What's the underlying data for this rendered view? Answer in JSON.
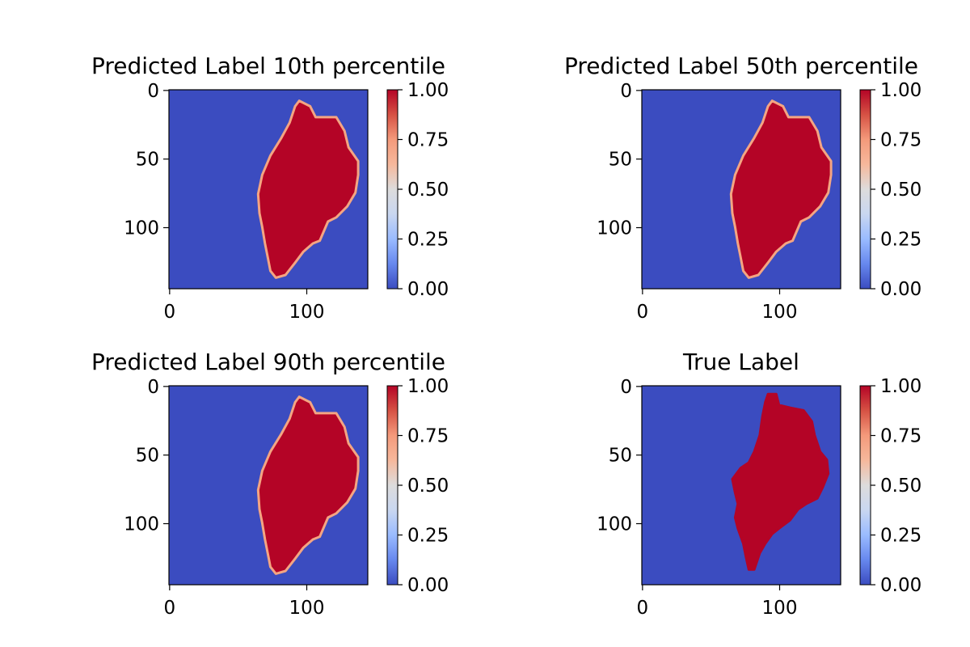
{
  "chart_data": [
    {
      "type": "heatmap",
      "title": "Predicted Label 10th percentile",
      "image_size": [
        145,
        145
      ],
      "xticks": [
        0,
        100
      ],
      "yticks": [
        0,
        50,
        100
      ],
      "colorbar": {
        "min": 0.0,
        "max": 1.0,
        "ticks": [
          "0.00",
          "0.25",
          "0.50",
          "0.75",
          "1.00"
        ],
        "colormap": "coolwarm"
      },
      "region_outline": [
        [
          95,
          8
        ],
        [
          103,
          12
        ],
        [
          107,
          20
        ],
        [
          122,
          20
        ],
        [
          128,
          30
        ],
        [
          131,
          42
        ],
        [
          138,
          52
        ],
        [
          138,
          62
        ],
        [
          136,
          75
        ],
        [
          130,
          85
        ],
        [
          122,
          93
        ],
        [
          116,
          96
        ],
        [
          110,
          110
        ],
        [
          105,
          112
        ],
        [
          98,
          118
        ],
        [
          92,
          126
        ],
        [
          85,
          135
        ],
        [
          78,
          137
        ],
        [
          74,
          132
        ],
        [
          72,
          122
        ],
        [
          70,
          112
        ],
        [
          68,
          100
        ],
        [
          66,
          90
        ],
        [
          65,
          76
        ],
        [
          68,
          62
        ],
        [
          74,
          48
        ],
        [
          82,
          35
        ],
        [
          88,
          24
        ],
        [
          92,
          12
        ]
      ],
      "edge_color": "#f4a582"
    },
    {
      "type": "heatmap",
      "title": "Predicted Label 50th percentile",
      "image_size": [
        145,
        145
      ],
      "xticks": [
        0,
        100
      ],
      "yticks": [
        0,
        50,
        100
      ],
      "colorbar": {
        "min": 0.0,
        "max": 1.0,
        "ticks": [
          "0.00",
          "0.25",
          "0.50",
          "0.75",
          "1.00"
        ],
        "colormap": "coolwarm"
      },
      "region_outline": [
        [
          95,
          8
        ],
        [
          103,
          12
        ],
        [
          107,
          20
        ],
        [
          122,
          20
        ],
        [
          128,
          30
        ],
        [
          131,
          42
        ],
        [
          138,
          52
        ],
        [
          138,
          62
        ],
        [
          136,
          75
        ],
        [
          130,
          85
        ],
        [
          122,
          93
        ],
        [
          116,
          96
        ],
        [
          110,
          110
        ],
        [
          105,
          112
        ],
        [
          98,
          118
        ],
        [
          92,
          126
        ],
        [
          85,
          135
        ],
        [
          78,
          137
        ],
        [
          74,
          132
        ],
        [
          72,
          122
        ],
        [
          70,
          112
        ],
        [
          68,
          100
        ],
        [
          66,
          90
        ],
        [
          65,
          76
        ],
        [
          68,
          62
        ],
        [
          74,
          48
        ],
        [
          82,
          35
        ],
        [
          88,
          24
        ],
        [
          92,
          12
        ]
      ],
      "edge_color": "#f4a582"
    },
    {
      "type": "heatmap",
      "title": "Predicted Label 90th percentile",
      "image_size": [
        145,
        145
      ],
      "xticks": [
        0,
        100
      ],
      "yticks": [
        0,
        50,
        100
      ],
      "colorbar": {
        "min": 0.0,
        "max": 1.0,
        "ticks": [
          "0.00",
          "0.25",
          "0.50",
          "0.75",
          "1.00"
        ],
        "colormap": "coolwarm"
      },
      "region_outline": [
        [
          95,
          8
        ],
        [
          103,
          12
        ],
        [
          107,
          20
        ],
        [
          122,
          20
        ],
        [
          128,
          30
        ],
        [
          131,
          42
        ],
        [
          138,
          52
        ],
        [
          138,
          62
        ],
        [
          136,
          75
        ],
        [
          130,
          85
        ],
        [
          122,
          93
        ],
        [
          116,
          96
        ],
        [
          110,
          110
        ],
        [
          105,
          112
        ],
        [
          98,
          118
        ],
        [
          92,
          126
        ],
        [
          85,
          135
        ],
        [
          78,
          137
        ],
        [
          74,
          132
        ],
        [
          72,
          122
        ],
        [
          70,
          112
        ],
        [
          68,
          100
        ],
        [
          66,
          90
        ],
        [
          65,
          76
        ],
        [
          68,
          62
        ],
        [
          74,
          48
        ],
        [
          82,
          35
        ],
        [
          88,
          24
        ],
        [
          92,
          12
        ]
      ],
      "edge_color": "#f4a582"
    },
    {
      "type": "heatmap",
      "title": "True Label",
      "image_size": [
        145,
        145
      ],
      "xticks": [
        0,
        100
      ],
      "yticks": [
        0,
        50,
        100
      ],
      "colorbar": {
        "min": 0.0,
        "max": 1.0,
        "ticks": [
          "0.00",
          "0.25",
          "0.50",
          "0.75",
          "1.00"
        ],
        "colormap": "coolwarm"
      },
      "region_outline": [
        [
          92,
          6
        ],
        [
          98,
          6
        ],
        [
          100,
          14
        ],
        [
          108,
          16
        ],
        [
          118,
          18
        ],
        [
          124,
          26
        ],
        [
          126,
          36
        ],
        [
          130,
          48
        ],
        [
          135,
          54
        ],
        [
          136,
          64
        ],
        [
          132,
          74
        ],
        [
          128,
          82
        ],
        [
          120,
          86
        ],
        [
          114,
          90
        ],
        [
          108,
          98
        ],
        [
          100,
          104
        ],
        [
          95,
          108
        ],
        [
          90,
          115
        ],
        [
          86,
          122
        ],
        [
          84,
          128
        ],
        [
          82,
          134
        ],
        [
          78,
          134
        ],
        [
          76,
          125
        ],
        [
          74,
          115
        ],
        [
          70,
          104
        ],
        [
          68,
          96
        ],
        [
          70,
          86
        ],
        [
          68,
          78
        ],
        [
          66,
          68
        ],
        [
          72,
          60
        ],
        [
          78,
          56
        ],
        [
          82,
          48
        ],
        [
          86,
          36
        ],
        [
          88,
          22
        ],
        [
          90,
          12
        ]
      ],
      "edge_color": "#b40426"
    }
  ],
  "colors": {
    "background": "#3b4cc0",
    "positive": "#b40426",
    "colormap_stops": [
      "#3b4cc0",
      "#6788ee",
      "#9abbff",
      "#c9d7f0",
      "#dddcdc",
      "#f6b89c",
      "#f49a7b",
      "#d65244",
      "#b40426"
    ]
  }
}
